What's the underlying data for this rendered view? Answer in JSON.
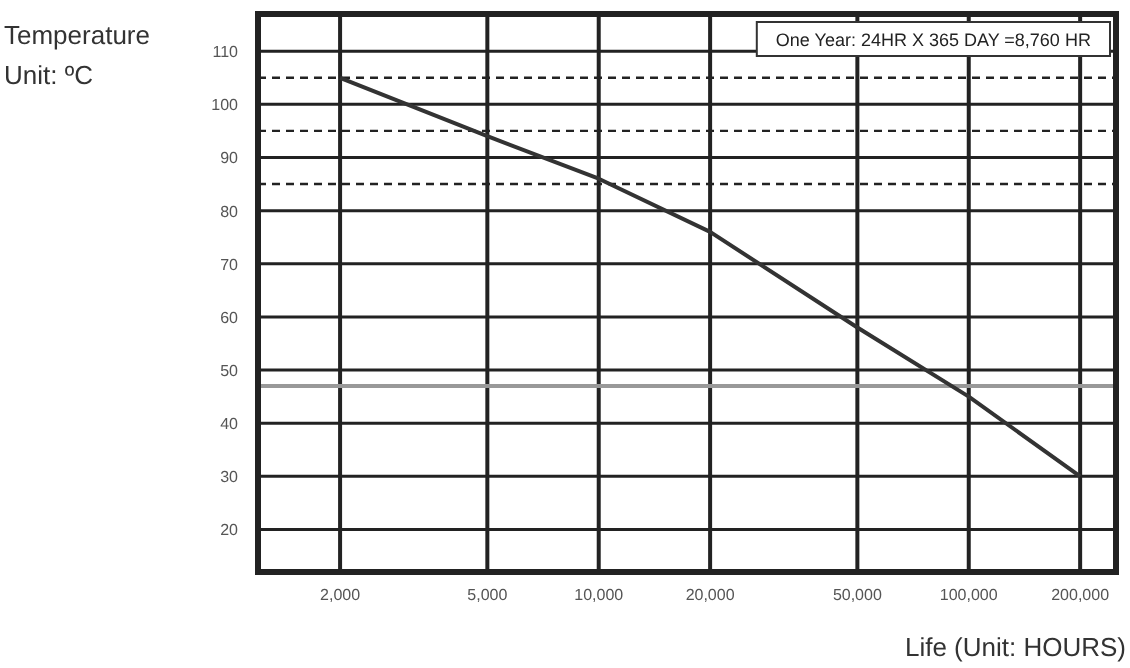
{
  "chart_data": {
    "type": "line",
    "xlabel": "Life (Unit: HOURS)",
    "ylabel": "Temperature\nUnit: ºC",
    "x": [
      2000,
      5000,
      10000,
      20000,
      50000,
      100000,
      200000
    ],
    "series": [
      {
        "color": "#333333",
        "values": [
          105,
          94,
          86,
          76,
          58,
          45,
          30
        ]
      }
    ],
    "log": "x",
    "xlim": [
      1200,
      250000
    ],
    "xticks": [
      {
        "value": 2000,
        "label": "2,000"
      },
      {
        "value": 5000,
        "label": "5,000"
      },
      {
        "value": 10000,
        "label": "10,000"
      },
      {
        "value": 20000,
        "label": "20,000"
      },
      {
        "value": 50000,
        "label": "50,000"
      },
      {
        "value": 100000,
        "label": "100,000"
      },
      {
        "value": 200000,
        "label": "200,000"
      }
    ],
    "ylim": [
      12,
      117
    ],
    "yticks": [
      20,
      30,
      40,
      50,
      60,
      70,
      80,
      {
        "value": 85,
        "label": null
      },
      90,
      {
        "value": 95,
        "label": null
      },
      100,
      {
        "value": 105,
        "label": null
      },
      110
    ],
    "ref_lines": [
      {
        "axis": "y",
        "value": 47,
        "color": "#999999"
      }
    ],
    "annotations": [
      "One Year: 24HR X 365 DAY =8,760 HR"
    ],
    "grid": true,
    "marker": "none",
    "line_style": "solid"
  }
}
